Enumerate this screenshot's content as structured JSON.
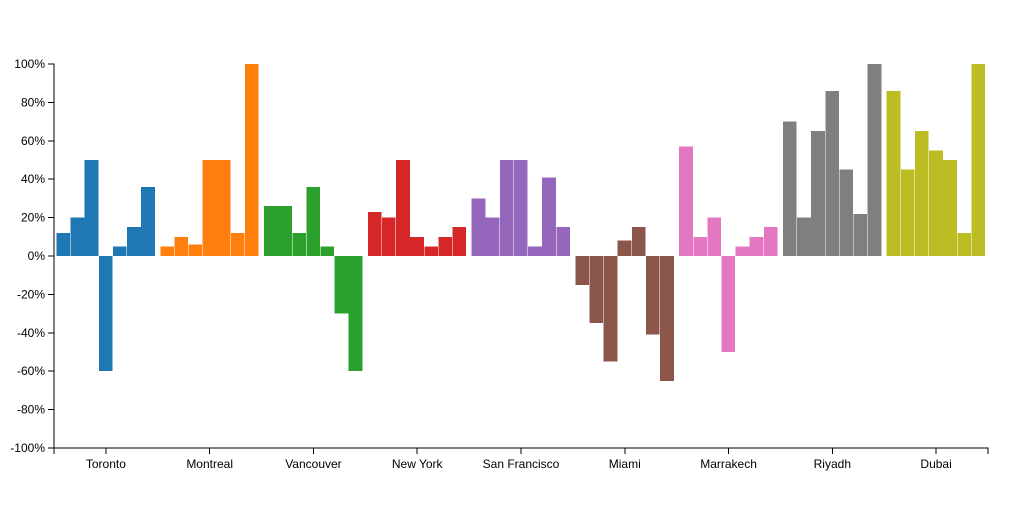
{
  "chart_data": {
    "type": "bar",
    "title": "",
    "xlabel": "",
    "ylabel": "",
    "ylim": [
      -100,
      100
    ],
    "y_ticks": [
      "100%",
      "80%",
      "60%",
      "40%",
      "20%",
      "0%",
      "-20%",
      "-40%",
      "-60%",
      "-80%",
      "-100%"
    ],
    "y_tick_values": [
      100,
      80,
      60,
      40,
      20,
      0,
      -20,
      -40,
      -60,
      -80,
      -100
    ],
    "grid": false,
    "legend": "none",
    "groups": [
      {
        "name": "Toronto",
        "color": "#1f77b4",
        "values": [
          12,
          20,
          50,
          -60,
          5,
          15,
          36
        ]
      },
      {
        "name": "Montreal",
        "color": "#ff7f0e",
        "values": [
          5,
          10,
          6,
          50,
          50,
          12,
          100
        ]
      },
      {
        "name": "Vancouver",
        "color": "#2ca02c",
        "values": [
          26,
          26,
          12,
          36,
          5,
          -30,
          -60
        ]
      },
      {
        "name": "New York",
        "color": "#d62728",
        "values": [
          23,
          20,
          50,
          10,
          5,
          10,
          15
        ]
      },
      {
        "name": "San Francisco",
        "color": "#9467bd",
        "values": [
          30,
          20,
          50,
          50,
          5,
          41,
          15
        ]
      },
      {
        "name": "Miami",
        "color": "#8c564b",
        "values": [
          -15,
          -35,
          -55,
          8,
          15,
          -41,
          -65
        ]
      },
      {
        "name": "Marrakech",
        "color": "#e377c2",
        "values": [
          57,
          10,
          20,
          -50,
          5,
          10,
          15
        ]
      },
      {
        "name": "Riyadh",
        "color": "#7f7f7f",
        "values": [
          70,
          20,
          65,
          86,
          45,
          22,
          100
        ]
      },
      {
        "name": "Dubai",
        "color": "#bcbd22",
        "values": [
          86,
          45,
          65,
          55,
          50,
          12,
          100
        ]
      }
    ]
  }
}
